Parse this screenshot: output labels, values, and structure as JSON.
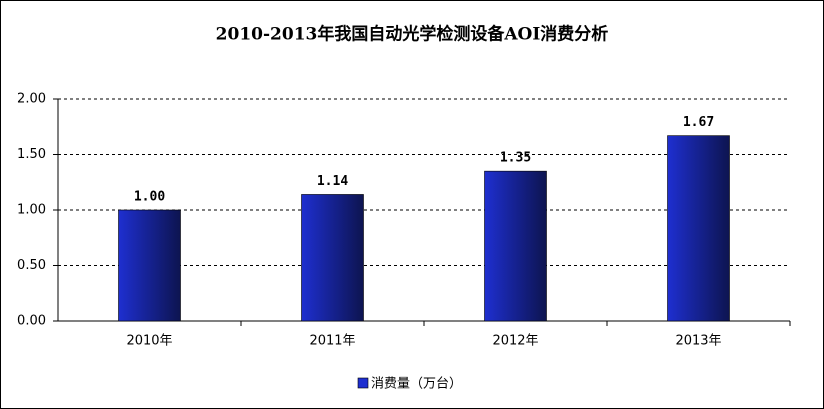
{
  "chart_data": {
    "type": "bar",
    "title": "2010-2013年我国自动光学检测设备AOI消费分析",
    "categories": [
      "2010年",
      "2011年",
      "2012年",
      "2013年"
    ],
    "series": [
      {
        "name": "消费量（万台）",
        "color": "#1e2fd0",
        "values": [
          1.0,
          1.14,
          1.35,
          1.67
        ],
        "value_labels": [
          "1.00",
          "1.14",
          "1.35",
          "1.67"
        ]
      }
    ],
    "ylim": [
      0,
      2
    ],
    "yticks": [
      {
        "value": 0,
        "label": "0.00"
      },
      {
        "value": 0.5,
        "label": "0.50"
      },
      {
        "value": 1,
        "label": "1.00"
      },
      {
        "value": 1.5,
        "label": "1.50"
      },
      {
        "value": 2,
        "label": "2.00"
      }
    ],
    "grid": true
  }
}
